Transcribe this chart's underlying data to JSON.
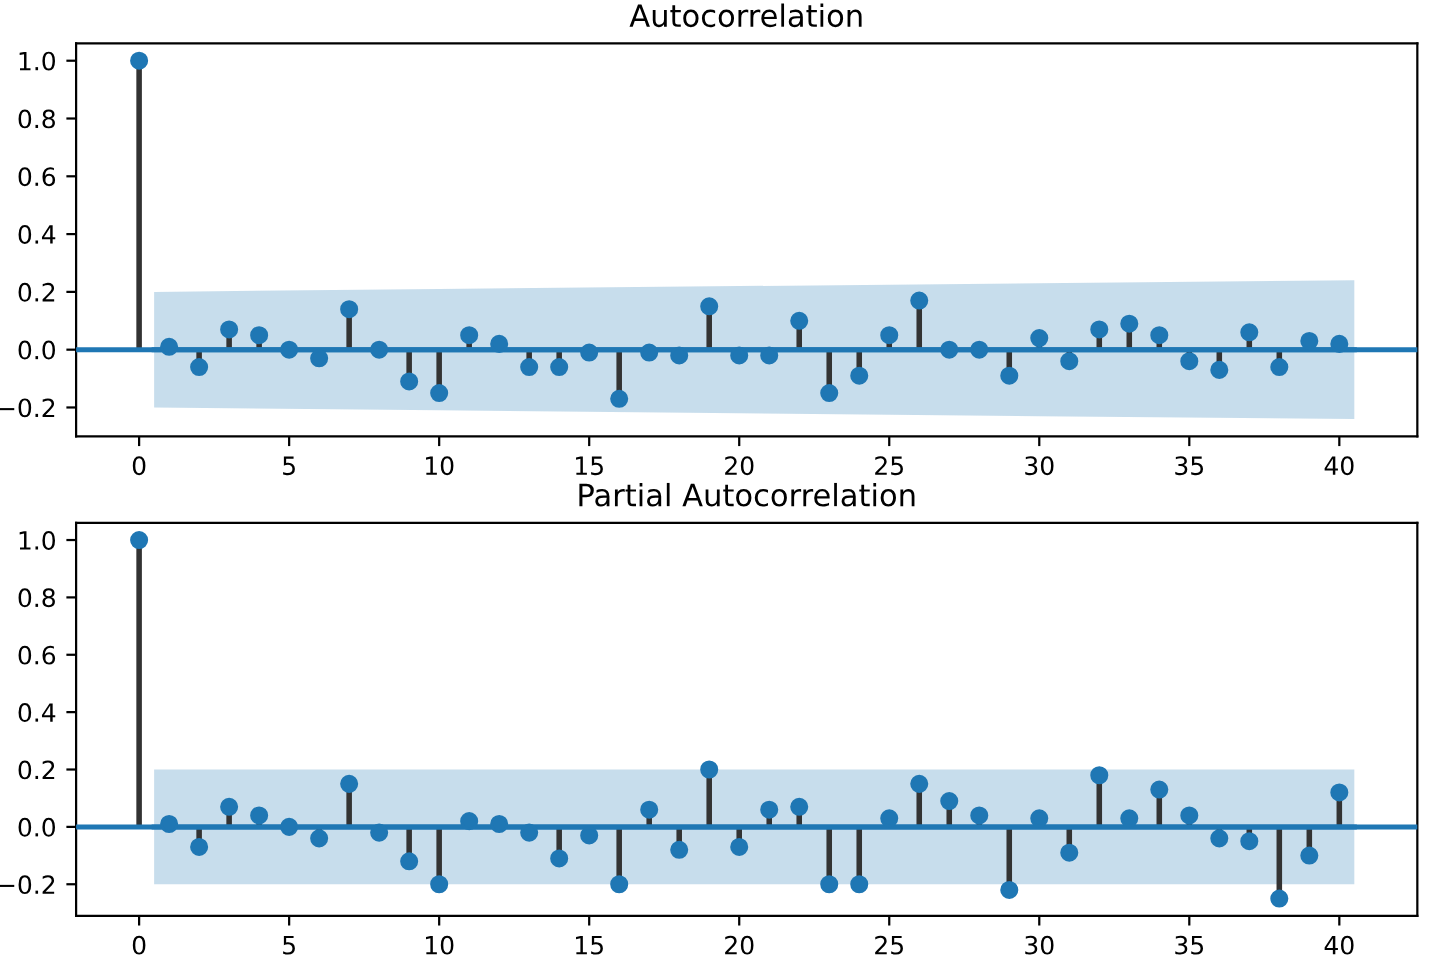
{
  "chart_data": [
    {
      "type": "lollipop",
      "title": "Autocorrelation",
      "xlim": [
        -2.1,
        42.6
      ],
      "ylim": [
        -0.3,
        1.06
      ],
      "xticks": [
        0,
        5,
        10,
        15,
        20,
        25,
        30,
        35,
        40
      ],
      "yticks": [
        {
          "value": -0.2,
          "label": "−0.2"
        },
        {
          "value": 0.0,
          "label": "0.0"
        },
        {
          "value": 0.2,
          "label": "0.2"
        },
        {
          "value": 0.4,
          "label": "0.4"
        },
        {
          "value": 0.6,
          "label": "0.6"
        },
        {
          "value": 0.8,
          "label": "0.8"
        },
        {
          "value": 1.0,
          "label": "1.0"
        }
      ],
      "ref_lines": [
        {
          "axis": "y",
          "value": 0,
          "color": "#1f77b4"
        }
      ],
      "series": [
        {
          "type": "line",
          "marker": "none",
          "color": "#1f77b4",
          "x": [
            0.5,
            10,
            20,
            30,
            40.5
          ],
          "values": [
            0,
            0,
            0,
            0,
            0
          ],
          "lower": [
            -0.2,
            -0.21,
            -0.22,
            -0.23,
            -0.24
          ],
          "upper": [
            0.2,
            0.21,
            0.22,
            0.23,
            0.24
          ]
        },
        {
          "marker": "circle",
          "color": "#1f77b4",
          "x": [
            0,
            1,
            2,
            3,
            4,
            5,
            6,
            7,
            8,
            9,
            10,
            11,
            12,
            13,
            14,
            15,
            16,
            17,
            18,
            19,
            20,
            21,
            22,
            23,
            24,
            25,
            26,
            27,
            28,
            29,
            30,
            31,
            32,
            33,
            34,
            35,
            36,
            37,
            38,
            39,
            40
          ],
          "values": [
            1.0,
            0.01,
            -0.06,
            0.07,
            0.05,
            0.0,
            -0.03,
            0.14,
            0.0,
            -0.11,
            -0.15,
            0.05,
            0.02,
            -0.06,
            -0.06,
            -0.01,
            -0.17,
            -0.01,
            -0.02,
            0.15,
            -0.02,
            -0.02,
            0.1,
            -0.15,
            -0.09,
            0.05,
            0.17,
            0.0,
            0.0,
            -0.09,
            0.04,
            -0.04,
            0.07,
            0.09,
            0.05,
            -0.04,
            -0.07,
            0.06,
            -0.06,
            0.03,
            0.02
          ]
        }
      ]
    },
    {
      "type": "lollipop",
      "title": "Partial Autocorrelation",
      "xlim": [
        -2.1,
        42.6
      ],
      "ylim": [
        -0.31,
        1.06
      ],
      "xticks": [
        0,
        5,
        10,
        15,
        20,
        25,
        30,
        35,
        40
      ],
      "yticks": [
        {
          "value": -0.2,
          "label": "−0.2"
        },
        {
          "value": 0.0,
          "label": "0.0"
        },
        {
          "value": 0.2,
          "label": "0.2"
        },
        {
          "value": 0.4,
          "label": "0.4"
        },
        {
          "value": 0.6,
          "label": "0.6"
        },
        {
          "value": 0.8,
          "label": "0.8"
        },
        {
          "value": 1.0,
          "label": "1.0"
        }
      ],
      "ref_lines": [
        {
          "axis": "y",
          "value": 0,
          "color": "#1f77b4"
        }
      ],
      "series": [
        {
          "type": "line",
          "marker": "none",
          "color": "#1f77b4",
          "x": [
            0.5,
            40.5
          ],
          "values": [
            0,
            0
          ],
          "lower": [
            -0.2,
            -0.2
          ],
          "upper": [
            0.2,
            0.2
          ]
        },
        {
          "marker": "circle",
          "color": "#1f77b4",
          "x": [
            0,
            1,
            2,
            3,
            4,
            5,
            6,
            7,
            8,
            9,
            10,
            11,
            12,
            13,
            14,
            15,
            16,
            17,
            18,
            19,
            20,
            21,
            22,
            23,
            24,
            25,
            26,
            27,
            28,
            29,
            30,
            31,
            32,
            33,
            34,
            35,
            36,
            37,
            38,
            39,
            40
          ],
          "values": [
            1.0,
            0.01,
            -0.07,
            0.07,
            0.04,
            0.0,
            -0.04,
            0.15,
            -0.02,
            -0.12,
            -0.2,
            0.02,
            0.01,
            -0.02,
            -0.11,
            -0.03,
            -0.2,
            0.06,
            -0.08,
            0.2,
            -0.07,
            0.06,
            0.07,
            -0.2,
            -0.2,
            0.03,
            0.15,
            0.09,
            0.04,
            -0.22,
            0.03,
            -0.09,
            0.18,
            0.03,
            0.13,
            0.04,
            -0.04,
            -0.05,
            -0.25,
            -0.1,
            0.12
          ]
        }
      ]
    }
  ]
}
